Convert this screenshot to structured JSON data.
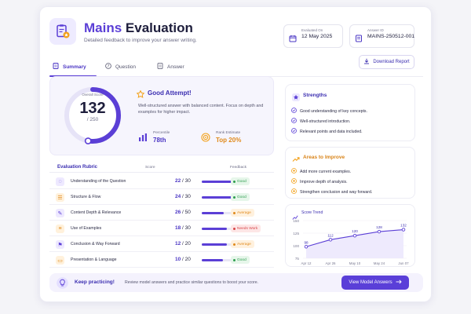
{
  "header": {
    "title_part1": "Mains",
    "title_part2": " Evaluation",
    "subtitle": "Detailed feedback to improve your answer writing.",
    "evaluated_on_label": "Evaluated On",
    "evaluated_on_value": "12 May 2025",
    "answer_id_label": "Answer ID",
    "answer_id_value": "MAINS-250512-001"
  },
  "tabs": [
    {
      "label": "Summary",
      "icon": "document-icon",
      "active": true
    },
    {
      "label": "Question",
      "icon": "help-circle-icon",
      "active": false
    },
    {
      "label": "Answer",
      "icon": "file-icon",
      "active": false
    }
  ],
  "download_label": "Download Report",
  "score": {
    "label": "Overall Score",
    "value": "132",
    "max": "/ 250",
    "fraction": 0.528,
    "headline": "Good Attempt!",
    "desc": "Well-structured answer with balanced content. Focus on depth and examples for higher impact.",
    "percentile_label": "Percentile",
    "percentile_value": "78th",
    "rank_label": "Rank Estimate",
    "rank_value": "Top 20%"
  },
  "rubric": {
    "title": "Evaluation Rubric",
    "col_score": "Score",
    "col_feedback": "Feedback",
    "rows": [
      {
        "name": "Understanding of the Question",
        "score": "22",
        "max": "/ 30",
        "fraction": 0.733,
        "feedback": "Good",
        "icon": "bulb-icon"
      },
      {
        "name": "Structure & Flow",
        "score": "24",
        "max": "/ 30",
        "fraction": 0.8,
        "feedback": "Good",
        "icon": "structure-icon"
      },
      {
        "name": "Content Depth & Relevance",
        "score": "26",
        "max": "/ 50",
        "fraction": 0.52,
        "feedback": "Average",
        "icon": "pencil-icon"
      },
      {
        "name": "Use of Examples",
        "score": "18",
        "max": "/ 30",
        "fraction": 0.6,
        "feedback": "Needs Work",
        "icon": "list-icon"
      },
      {
        "name": "Conclusion & Way Forward",
        "score": "12",
        "max": "/ 20",
        "fraction": 0.6,
        "feedback": "Average",
        "icon": "flag-icon"
      },
      {
        "name": "Presentation & Language",
        "score": "10",
        "max": "/ 20",
        "fraction": 0.5,
        "feedback": "Good",
        "icon": "presentation-icon"
      }
    ]
  },
  "strengths": {
    "title": "Strengths",
    "items": [
      "Good understanding of key concepts.",
      "Well-structured introduction.",
      "Relevant points and data included."
    ]
  },
  "improve": {
    "title": "Areas to Improve",
    "items": [
      "Add more current examples.",
      "Improve depth of analysis.",
      "Strengthen conclusion and way forward."
    ]
  },
  "trend": {
    "title": "Score Trend"
  },
  "chart_data": {
    "type": "line",
    "x": [
      "Apr 12",
      "Apr 26",
      "May 10",
      "May 24",
      "Jun 07"
    ],
    "values": [
      98,
      112,
      120,
      128,
      132
    ],
    "ylim": [
      75,
      150
    ],
    "yticks": [
      "75",
      "100",
      "125",
      "150"
    ]
  },
  "footer": {
    "title": "Keep practicing!",
    "desc": "Review model answers and practice similar questions to boost your score.",
    "button": "View Model Answers"
  },
  "colors": {
    "accent": "#5b3fd6",
    "good": "#2e9e4f",
    "average": "#e08a1c",
    "needs_work": "#d8464a"
  }
}
